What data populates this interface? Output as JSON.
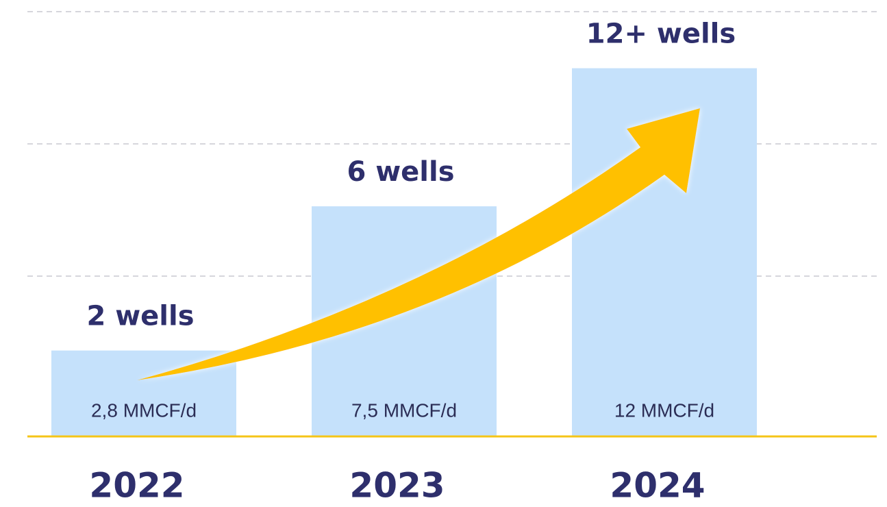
{
  "chart_data": {
    "type": "bar",
    "categories": [
      "2022",
      "2023",
      "2024"
    ],
    "values": [
      2.8,
      7.5,
      12
    ],
    "value_labels": [
      "2,8 MMCF/d",
      "7,5 MMCF/d",
      "12 MMCF/d"
    ],
    "annotations": [
      "2 wells",
      "6 wells",
      "12+ wells"
    ],
    "color": "#c5e1fb",
    "ylim": [
      0,
      14
    ]
  }
}
